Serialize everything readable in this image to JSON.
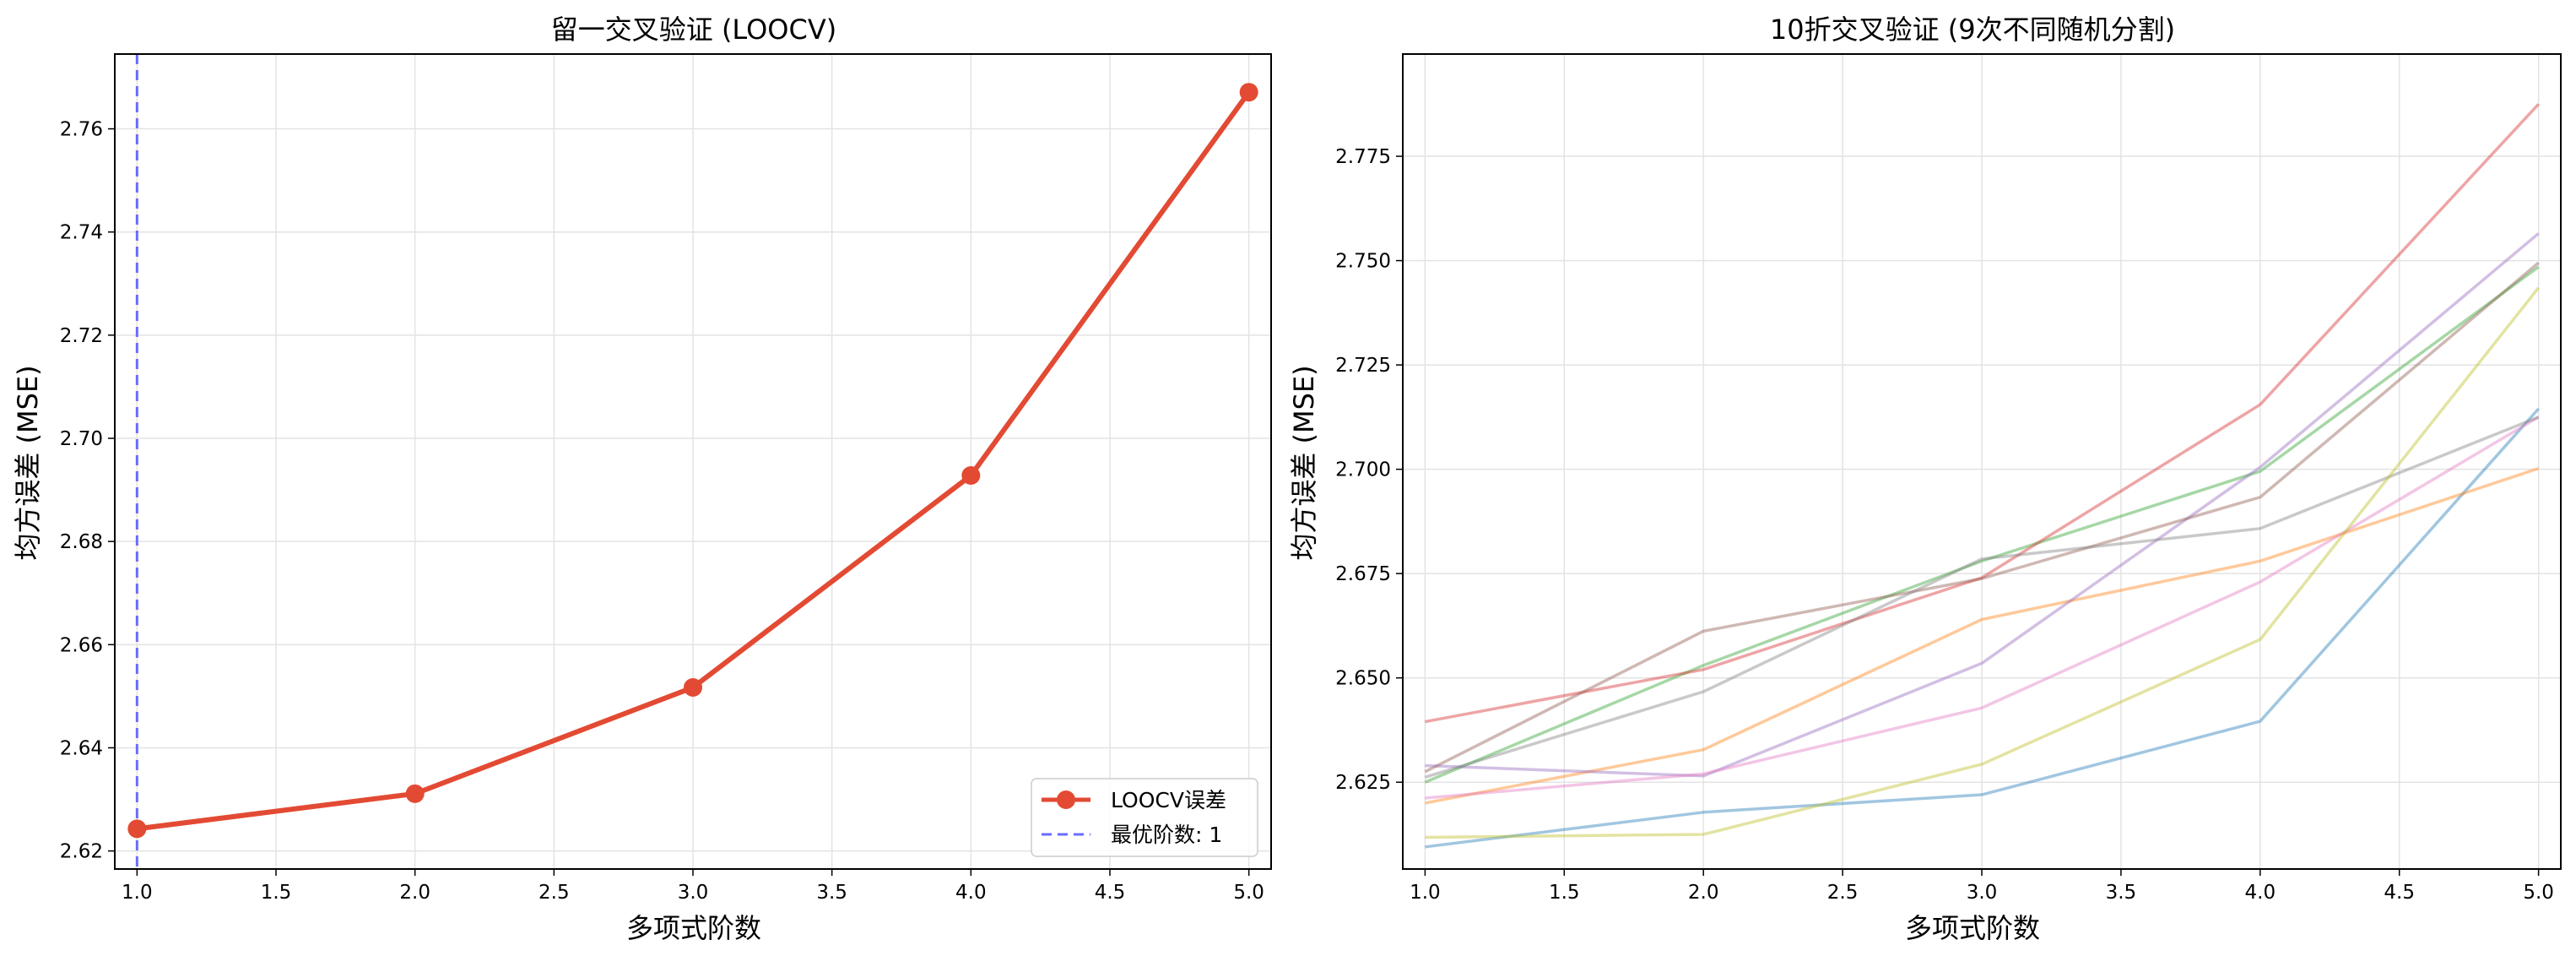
{
  "chart_data": [
    {
      "type": "line",
      "title": "留一交叉验证 (LOOCV)",
      "xlabel": "多项式阶数",
      "ylabel": "均方误差 (MSE)",
      "xlim": [
        0.92,
        5.08
      ],
      "ylim": [
        2.6165,
        2.7745
      ],
      "xticks": [
        "1.0",
        "1.5",
        "2.0",
        "2.5",
        "3.0",
        "3.5",
        "4.0",
        "4.5",
        "5.0"
      ],
      "yticks": [
        "2.62",
        "2.64",
        "2.66",
        "2.68",
        "2.70",
        "2.72",
        "2.74",
        "2.76"
      ],
      "grid": true,
      "legend_position": "bottom-right",
      "series": [
        {
          "name": "LOOCV误差",
          "color": "#e34a33",
          "x": [
            1,
            2,
            3,
            4,
            5
          ],
          "values": [
            2.6243,
            2.6311,
            2.6517,
            2.6928,
            2.7671
          ]
        }
      ],
      "reference_line": {
        "label": "最优阶数: 1",
        "x": 1,
        "color": "#6b6bff"
      }
    },
    {
      "type": "line",
      "title": "10折交叉验证 (9次不同随机分割)",
      "xlabel": "多项式阶数",
      "ylabel": "均方误差 (MSE)",
      "xlim": [
        0.92,
        5.08
      ],
      "ylim": [
        2.6042,
        2.7995
      ],
      "xticks": [
        "1.0",
        "1.5",
        "2.0",
        "2.5",
        "3.0",
        "3.5",
        "4.0",
        "4.5",
        "5.0"
      ],
      "yticks": [
        "2.625",
        "2.650",
        "2.675",
        "2.700",
        "2.725",
        "2.750",
        "2.775"
      ],
      "grid": true,
      "series": [
        {
          "color": "#1f77b4",
          "x": [
            1,
            2,
            3,
            4,
            5
          ],
          "values": [
            2.6095,
            2.6178,
            2.622,
            2.6396,
            2.7145
          ]
        },
        {
          "color": "#ff7f0e",
          "x": [
            1,
            2,
            3,
            4,
            5
          ],
          "values": [
            2.62,
            2.6328,
            2.664,
            2.678,
            2.7002
          ]
        },
        {
          "color": "#2ca02c",
          "x": [
            1,
            2,
            3,
            4,
            5
          ],
          "values": [
            2.625,
            2.653,
            2.678,
            2.6995,
            2.7485
          ]
        },
        {
          "color": "#d62728",
          "x": [
            1,
            2,
            3,
            4,
            5
          ],
          "values": [
            2.6395,
            2.652,
            2.674,
            2.7155,
            2.7875
          ]
        },
        {
          "color": "#9467bd",
          "x": [
            1,
            2,
            3,
            4,
            5
          ],
          "values": [
            2.629,
            2.6265,
            2.6535,
            2.7005,
            2.7565
          ]
        },
        {
          "color": "#8c564b",
          "x": [
            1,
            2,
            3,
            4,
            5
          ],
          "values": [
            2.6275,
            2.6612,
            2.6738,
            2.6933,
            2.7495
          ]
        },
        {
          "color": "#e377c2",
          "x": [
            1,
            2,
            3,
            4,
            5
          ],
          "values": [
            2.6212,
            2.627,
            2.6428,
            2.673,
            2.7125
          ]
        },
        {
          "color": "#7f7f7f",
          "x": [
            1,
            2,
            3,
            4,
            5
          ],
          "values": [
            2.6262,
            2.6467,
            2.6785,
            2.6858,
            2.7125
          ]
        },
        {
          "color": "#bcbd22",
          "x": [
            1,
            2,
            3,
            4,
            5
          ],
          "values": [
            2.6118,
            2.6125,
            2.6293,
            2.6592,
            2.7435
          ]
        }
      ]
    }
  ]
}
